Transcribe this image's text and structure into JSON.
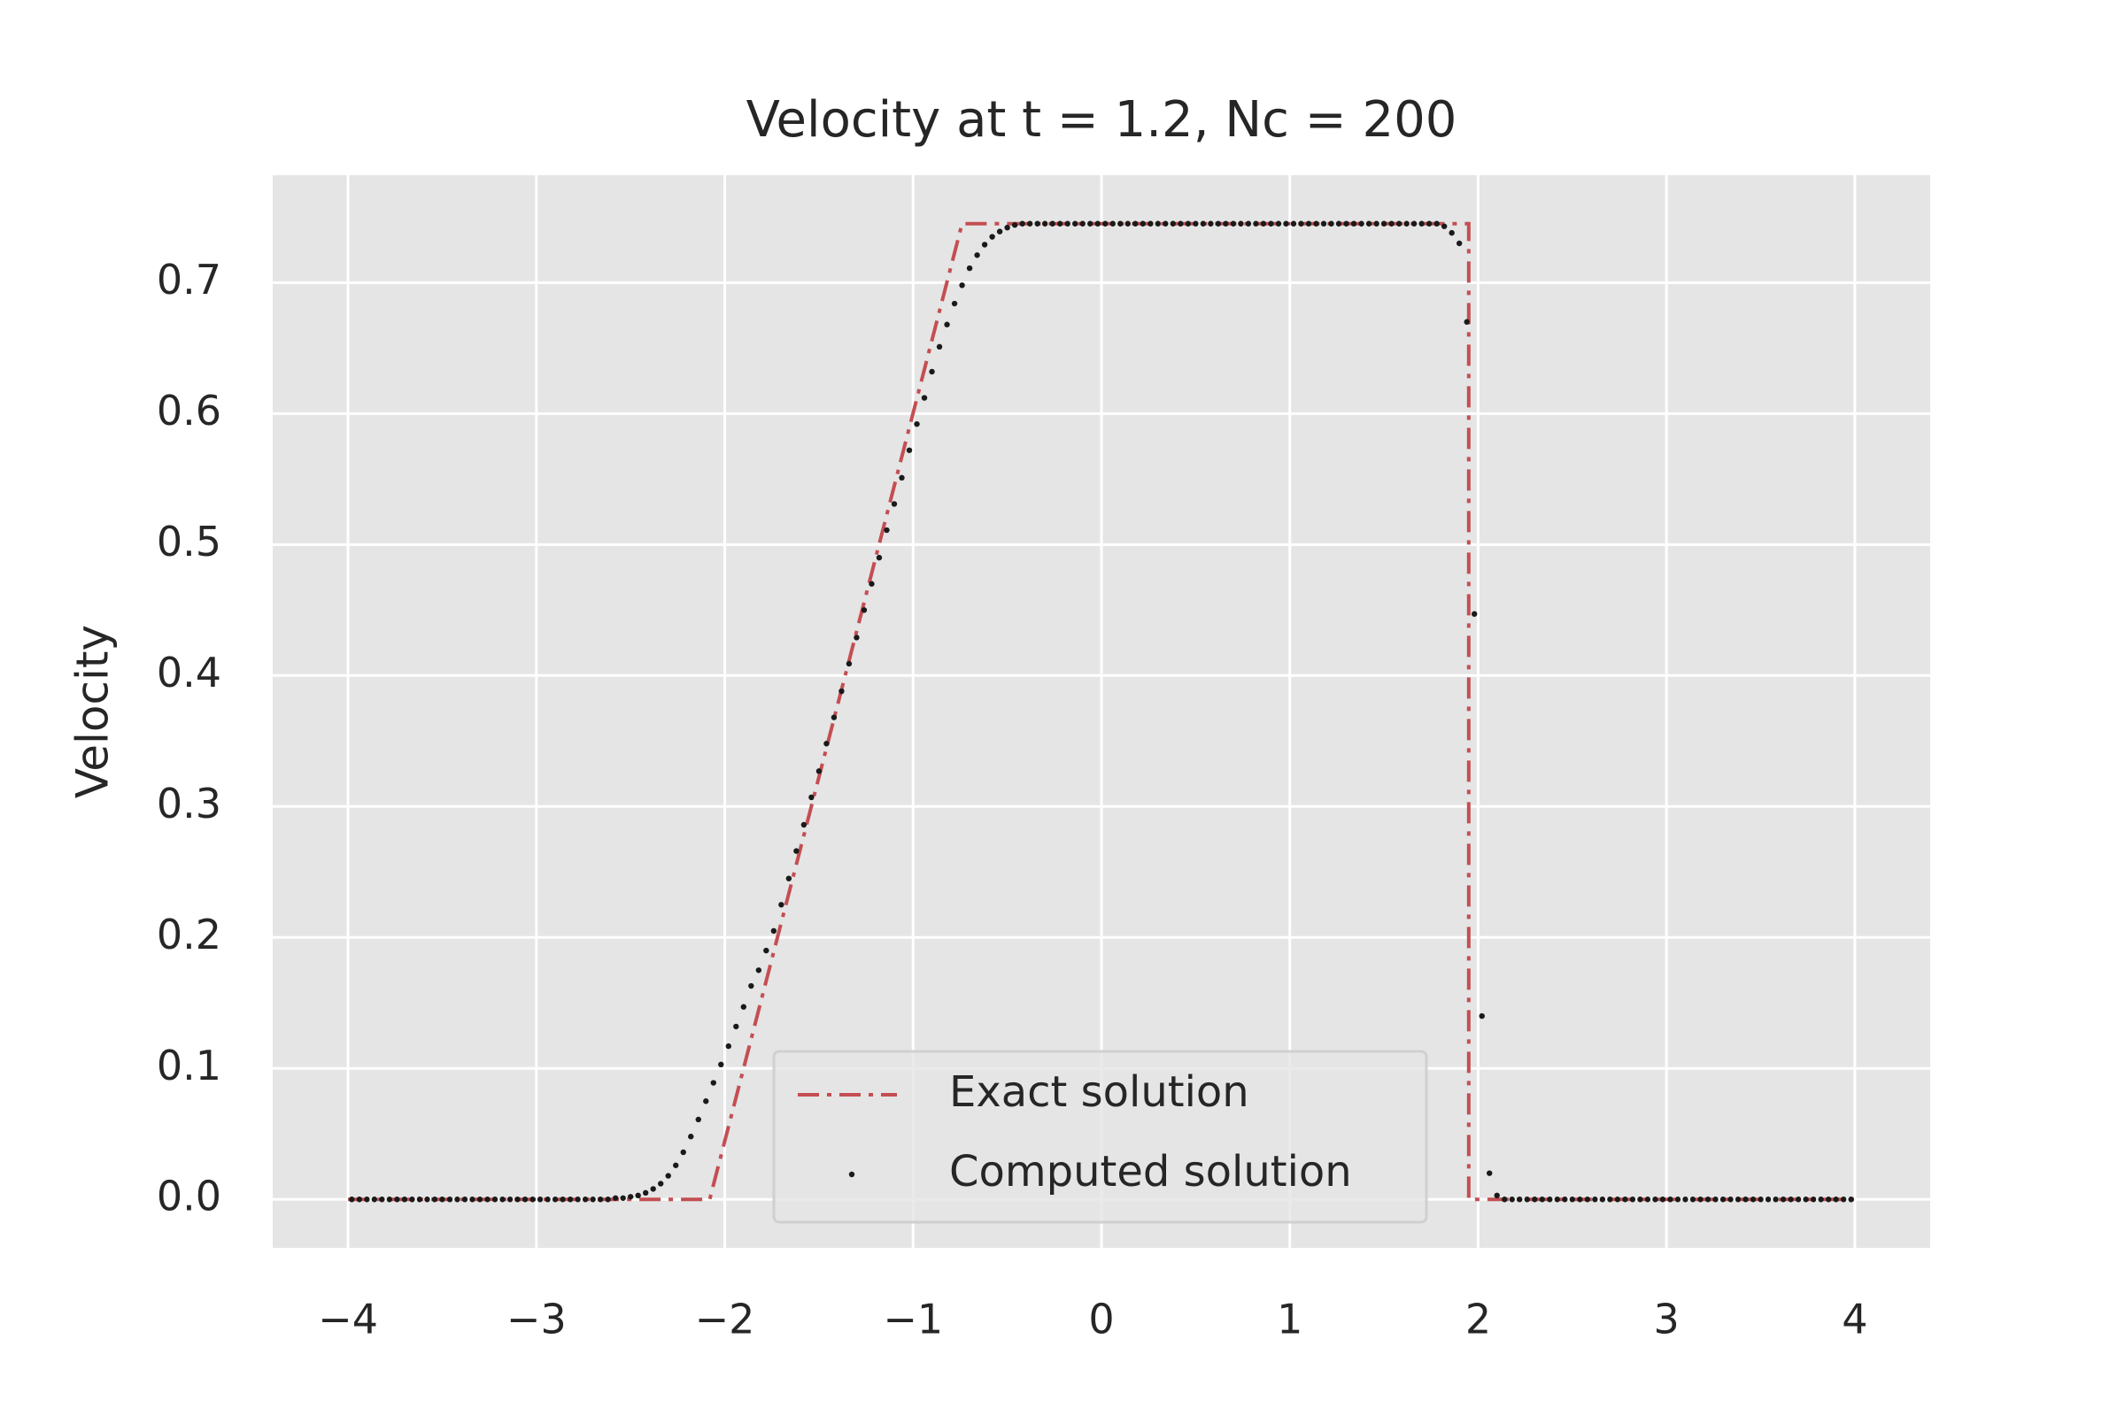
{
  "chart_data": {
    "type": "line",
    "title": "Velocity at t = 1.2, Nc = 200",
    "ylabel": "Velocity",
    "xlim": [
      -4.4,
      4.4
    ],
    "ylim": [
      -0.037,
      0.782
    ],
    "xticks": [
      {
        "value": -4,
        "label": "−4"
      },
      {
        "value": -3,
        "label": "−3"
      },
      {
        "value": -2,
        "label": "−2"
      },
      {
        "value": -1,
        "label": "−1"
      },
      0,
      1,
      2,
      3,
      4
    ],
    "yticks": [
      {
        "value": 0,
        "label": "0.0"
      },
      0.1,
      0.2,
      0.3,
      0.4,
      0.5,
      0.6,
      0.7
    ],
    "grid": true,
    "legend": "lower center",
    "series": [
      {
        "name": "Exact solution",
        "color": "#c44e52",
        "linestyle": "-.",
        "x": [
          -4,
          -2.08,
          -0.74,
          1.95,
          1.95,
          4
        ],
        "values": [
          0,
          0,
          0.745,
          0.745,
          0,
          0
        ]
      },
      {
        "name": "Computed solution",
        "color": "#1a1a1a",
        "linestyle": "none",
        "marker": ".",
        "x": [
          -3.98,
          -3.94,
          -3.9,
          -3.86,
          -3.82,
          -3.78,
          -3.74,
          -3.7,
          -3.66,
          -3.62,
          -3.58,
          -3.54,
          -3.5,
          -3.46,
          -3.42,
          -3.38,
          -3.34,
          -3.3,
          -3.26,
          -3.22,
          -3.18,
          -3.14,
          -3.1,
          -3.06,
          -3.02,
          -2.98,
          -2.94,
          -2.9,
          -2.86,
          -2.82,
          -2.78,
          -2.74,
          -2.7,
          -2.66,
          -2.62,
          -2.58,
          -2.54,
          -2.5,
          -2.46,
          -2.42,
          -2.38,
          -2.34,
          -2.3,
          -2.26,
          -2.22,
          -2.18,
          -2.14,
          -2.1,
          -2.06,
          -2.02,
          -1.98,
          -1.94,
          -1.9,
          -1.86,
          -1.82,
          -1.78,
          -1.74,
          -1.7,
          -1.66,
          -1.62,
          -1.58,
          -1.54,
          -1.5,
          -1.46,
          -1.42,
          -1.38,
          -1.34,
          -1.3,
          -1.26,
          -1.22,
          -1.18,
          -1.14,
          -1.1,
          -1.06,
          -1.02,
          -0.98,
          -0.94,
          -0.9,
          -0.86,
          -0.82,
          -0.78,
          -0.74,
          -0.7,
          -0.66,
          -0.62,
          -0.58,
          -0.54,
          -0.5,
          -0.46,
          -0.42,
          -0.38,
          -0.34,
          -0.3,
          -0.26,
          -0.22,
          -0.18,
          -0.14,
          -0.1,
          -0.06,
          -0.02,
          0.02,
          0.06,
          0.1,
          0.14,
          0.18,
          0.22,
          0.26,
          0.3,
          0.34,
          0.38,
          0.42,
          0.46,
          0.5,
          0.54,
          0.58,
          0.62,
          0.66,
          0.7,
          0.74,
          0.78,
          0.82,
          0.86,
          0.9,
          0.94,
          0.98,
          1.02,
          1.06,
          1.1,
          1.14,
          1.18,
          1.22,
          1.26,
          1.3,
          1.34,
          1.38,
          1.42,
          1.46,
          1.5,
          1.54,
          1.58,
          1.62,
          1.66,
          1.7,
          1.74,
          1.78,
          1.82,
          1.86,
          1.9,
          1.94,
          1.98,
          2.02,
          2.06,
          2.1,
          2.14,
          2.18,
          2.22,
          2.26,
          2.3,
          2.34,
          2.38,
          2.42,
          2.46,
          2.5,
          2.54,
          2.58,
          2.62,
          2.66,
          2.7,
          2.74,
          2.78,
          2.82,
          2.86,
          2.9,
          2.94,
          2.98,
          3.02,
          3.06,
          3.1,
          3.14,
          3.18,
          3.22,
          3.26,
          3.3,
          3.34,
          3.38,
          3.42,
          3.46,
          3.5,
          3.54,
          3.58,
          3.62,
          3.66,
          3.7,
          3.74,
          3.78,
          3.82,
          3.86,
          3.9,
          3.94,
          3.98
        ],
        "values": [
          0,
          0,
          0,
          0,
          0,
          0,
          0,
          0,
          0,
          0,
          0,
          0,
          0,
          0,
          0,
          0,
          0,
          0,
          0,
          0,
          0,
          0,
          0,
          0,
          0,
          0,
          0,
          0,
          0,
          0,
          0,
          0,
          0,
          0,
          0,
          0.001,
          0.001,
          0.002,
          0.003,
          0.005,
          0.008,
          0.012,
          0.018,
          0.026,
          0.036,
          0.048,
          0.061,
          0.075,
          0.089,
          0.103,
          0.117,
          0.132,
          0.147,
          0.163,
          0.175,
          0.19,
          0.205,
          0.225,
          0.245,
          0.266,
          0.286,
          0.307,
          0.327,
          0.348,
          0.368,
          0.388,
          0.409,
          0.429,
          0.45,
          0.47,
          0.49,
          0.511,
          0.531,
          0.551,
          0.572,
          0.592,
          0.612,
          0.632,
          0.651,
          0.668,
          0.684,
          0.698,
          0.711,
          0.721,
          0.729,
          0.735,
          0.739,
          0.742,
          0.744,
          0.745,
          0.745,
          0.745,
          0.745,
          0.745,
          0.745,
          0.745,
          0.745,
          0.745,
          0.745,
          0.745,
          0.745,
          0.745,
          0.745,
          0.745,
          0.745,
          0.745,
          0.745,
          0.745,
          0.745,
          0.745,
          0.745,
          0.745,
          0.745,
          0.745,
          0.745,
          0.745,
          0.745,
          0.745,
          0.745,
          0.745,
          0.745,
          0.745,
          0.745,
          0.745,
          0.745,
          0.745,
          0.745,
          0.745,
          0.745,
          0.745,
          0.745,
          0.745,
          0.745,
          0.745,
          0.745,
          0.745,
          0.745,
          0.745,
          0.745,
          0.745,
          0.745,
          0.745,
          0.745,
          0.745,
          0.745,
          0.743,
          0.738,
          0.73,
          0.67,
          0.447,
          0.14,
          0.02,
          0.003,
          0,
          0,
          0,
          0,
          0,
          0,
          0,
          0,
          0,
          0,
          0,
          0,
          0,
          0,
          0,
          0,
          0,
          0,
          0,
          0,
          0,
          0,
          0,
          0,
          0,
          0,
          0,
          0,
          0,
          0,
          0,
          0,
          0,
          0,
          0,
          0,
          0,
          0,
          0,
          0,
          0,
          0,
          0,
          0,
          0,
          0,
          0
        ]
      }
    ]
  }
}
